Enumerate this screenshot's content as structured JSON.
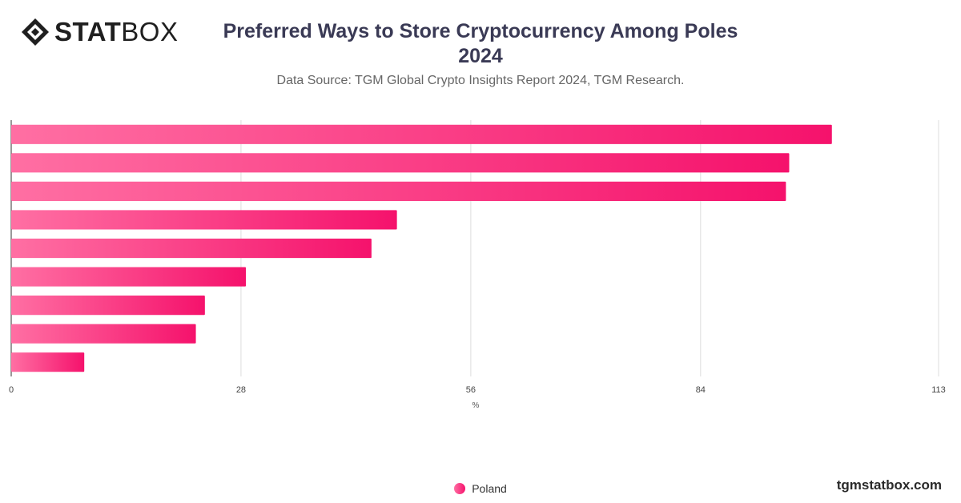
{
  "logo": {
    "text_bold": "STAT",
    "text_light": "BOX"
  },
  "title_line1": "Preferred Ways to Store Cryptocurrency Among Poles",
  "title_line2": "2024",
  "subtitle": "Data Source: TGM Global Crypto Insights Report 2024, TGM Research.",
  "brand": "tgmstatbox.com",
  "colors": {
    "bar_start": "#ff6fa3",
    "bar_end": "#f5126c",
    "grid": "#dddddd",
    "axis": "#333333"
  },
  "chart_data": {
    "type": "bar",
    "orientation": "horizontal",
    "categories": [
      "",
      "",
      "",
      "",
      "",
      "",
      "",
      "",
      ""
    ],
    "series": [
      {
        "name": "Poland",
        "values": [
          100,
          94.8,
          94.4,
          47,
          43.9,
          28.6,
          23.6,
          22.5,
          8.9
        ]
      }
    ],
    "xlabel": "%",
    "xlim": [
      0,
      113
    ],
    "xticks": [
      0,
      28,
      56,
      84,
      113
    ],
    "grid": true,
    "legend": "bottom-center"
  }
}
